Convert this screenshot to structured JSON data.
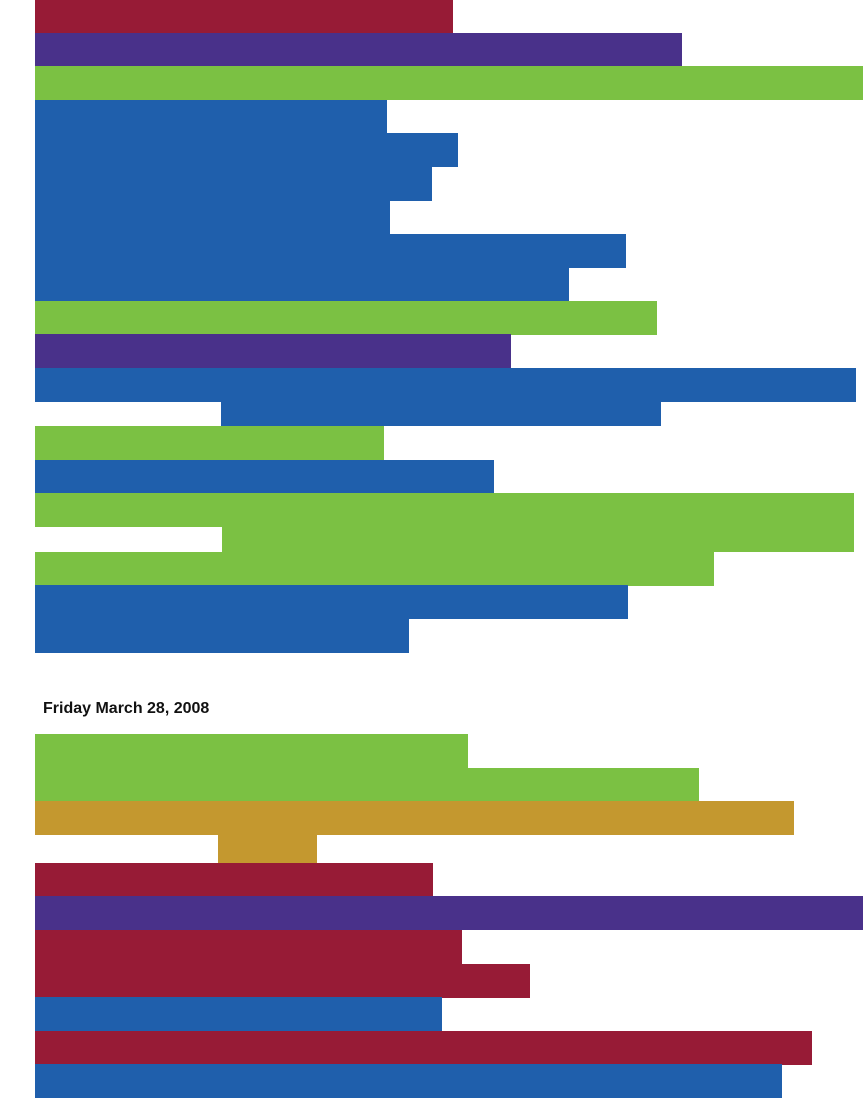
{
  "colors": {
    "red": "#971b36",
    "purple": "#49318a",
    "green": "#7bc143",
    "blue": "#1f5fac",
    "gold": "#c4982f"
  },
  "day_heading": "Friday March 28, 2008",
  "top_section": {
    "rows": [
      {
        "color": "red",
        "span": [
          35,
          453
        ]
      },
      {
        "color": "purple",
        "span": [
          35,
          682
        ]
      },
      {
        "color": "green",
        "span": [
          35,
          863
        ]
      },
      {
        "color": "blue",
        "span": [
          35,
          387
        ]
      },
      {
        "color": "blue",
        "span": [
          35,
          458
        ]
      },
      {
        "color": "blue",
        "span": [
          35,
          432
        ]
      },
      {
        "color": "blue",
        "span": [
          35,
          390
        ]
      },
      {
        "color": "blue",
        "span": [
          35,
          626
        ]
      },
      {
        "color": "blue",
        "span": [
          35,
          569
        ]
      },
      {
        "color": "green",
        "span": [
          35,
          657
        ]
      },
      {
        "color": "purple",
        "span": [
          35,
          511
        ]
      },
      {
        "color": "blue",
        "span": [
          35,
          856
        ],
        "extra_span": [
          221,
          661
        ]
      },
      {
        "color": "green",
        "span": [
          35,
          384
        ]
      },
      {
        "color": "blue",
        "span": [
          35,
          494
        ]
      },
      {
        "color": "green",
        "span": [
          35,
          854
        ],
        "extra_span": [
          222,
          854
        ]
      },
      {
        "color": "green",
        "span": [
          35,
          714
        ]
      },
      {
        "color": "blue",
        "span": [
          35,
          628
        ]
      },
      {
        "color": "blue",
        "span": [
          35,
          409
        ]
      }
    ]
  },
  "bottom_section": {
    "rows": [
      {
        "color": "green",
        "span": [
          35,
          468
        ]
      },
      {
        "color": "green",
        "span": [
          35,
          699
        ]
      },
      {
        "color": "gold",
        "span": [
          35,
          794
        ],
        "extra_span": [
          218,
          317
        ]
      },
      {
        "color": "red",
        "span": [
          35,
          433
        ]
      },
      {
        "color": "purple",
        "span": [
          35,
          863
        ]
      },
      {
        "color": "red",
        "span": [
          35,
          462
        ]
      },
      {
        "color": "red",
        "span": [
          35,
          530
        ]
      },
      {
        "color": "blue",
        "span": [
          35,
          442
        ]
      },
      {
        "color": "red",
        "span": [
          35,
          812
        ]
      },
      {
        "color": "blue",
        "span": [
          35,
          782
        ]
      }
    ]
  }
}
